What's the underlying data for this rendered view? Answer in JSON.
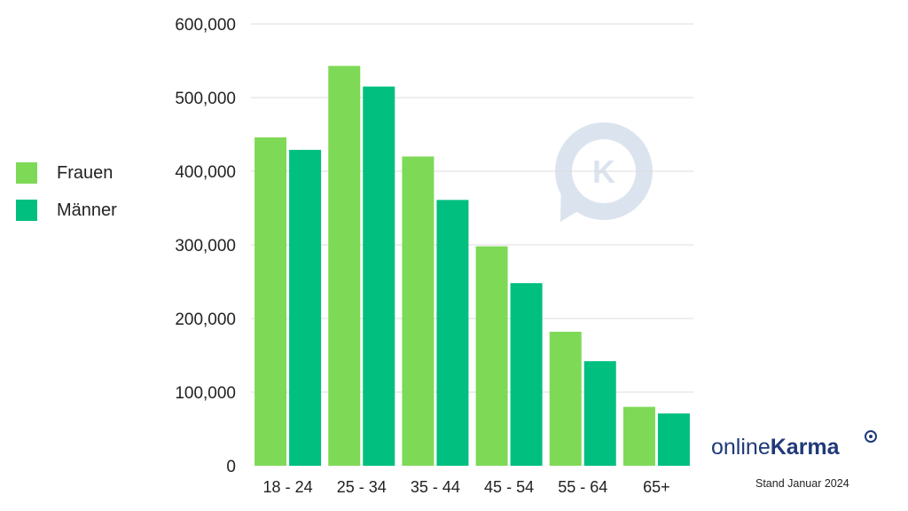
{
  "chart_data": {
    "type": "bar",
    "categories": [
      "18 - 24",
      "25 - 34",
      "35 - 44",
      "45 - 54",
      "55 - 64",
      "65+"
    ],
    "series": [
      {
        "name": "Frauen",
        "color": "#7ed957",
        "values": [
          446000,
          543000,
          420000,
          298000,
          182000,
          80000
        ]
      },
      {
        "name": "Männer",
        "color": "#00bf7f",
        "values": [
          429000,
          515000,
          361000,
          248000,
          142000,
          71000
        ]
      }
    ],
    "yticks": [
      "0",
      "100,000",
      "200,000",
      "300,000",
      "400,000",
      "500,000",
      "600,000"
    ],
    "ylim": [
      0,
      600000
    ],
    "grid": true,
    "legend_position": "left"
  },
  "watermark": {
    "letter": "K",
    "color": "#dbe4ee"
  },
  "brand": {
    "prefix": "online",
    "strong": "Karma",
    "color": "#1f3a78"
  },
  "footnote": "Stand Januar 2024"
}
